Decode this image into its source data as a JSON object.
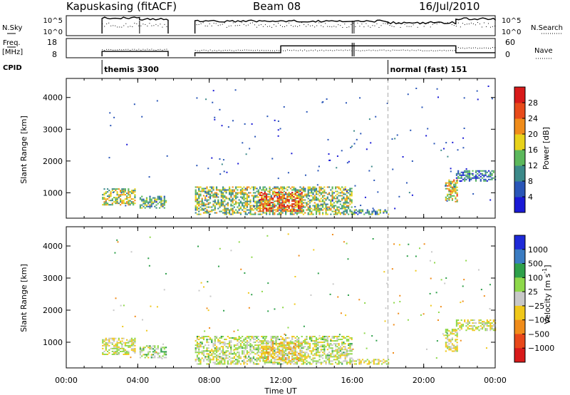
{
  "header": {
    "station": "Kapuskasing (fitACF)",
    "beam": "Beam 08",
    "date": "16/Jul/2010"
  },
  "strips": {
    "nsky_label": "N.Sky",
    "nsky_ticks": [
      "10^5",
      "10^0"
    ],
    "nsearch_label": "N.Search",
    "freq_label_1": "Freq.",
    "freq_label_2": "[MHz]",
    "freq_ticks": [
      "18",
      "8"
    ],
    "nave_ticks": [
      "60",
      "0"
    ],
    "nave_label": "Nave",
    "cpid_label": "CPID",
    "cpid_entries": [
      {
        "label": "themis 3300",
        "start_hour": 2.0
      },
      {
        "label": "normal (fast) 151",
        "start_hour": 18.0
      }
    ]
  },
  "axes": {
    "ylabel": "Slant Range [km]",
    "xlabel": "Time UT",
    "y_ticks": [
      "1000",
      "2000",
      "3000",
      "4000"
    ],
    "x_ticks": [
      "00:00",
      "04:00",
      "08:00",
      "12:00",
      "16:00",
      "20:00",
      "00:00"
    ]
  },
  "colorbars": {
    "power_label": "Power [dB]",
    "power_ticks": [
      "4",
      "8",
      "12",
      "16",
      "20",
      "24",
      "28"
    ],
    "velocity_label": "Velocity [m s",
    "velocity_sup": "-1",
    "velocity_label_end": "]",
    "velocity_ticks": [
      "1000",
      "500",
      "100",
      "25",
      "−25",
      "−100",
      "−500",
      "−1000"
    ]
  },
  "chart_data": {
    "type": "heatmap",
    "x_range_hours": [
      0,
      24
    ],
    "y_range_km": [
      200,
      4600
    ],
    "x_tick_hours": [
      0,
      4,
      8,
      12,
      16,
      20,
      24
    ],
    "y_tick_km": [
      1000,
      2000,
      3000,
      4000
    ],
    "power_scale_db": [
      0,
      30
    ],
    "velocity_scale_ms": [
      -1000,
      1000
    ],
    "power_colors": [
      "#1a1ad6",
      "#2a56b8",
      "#3c8a8a",
      "#5cb85c",
      "#e8d21a",
      "#f08c1a",
      "#e84a1a",
      "#d81a1a"
    ],
    "velocity_colors": [
      "#1e2ad8",
      "#3a7cc2",
      "#2ea04a",
      "#8ed84a",
      "#c8c8c8",
      "#f0c81a",
      "#f08c1a",
      "#e8481a",
      "#d81a1a"
    ],
    "data_gaps_hours": [
      [
        0,
        2.0
      ],
      [
        5.7,
        7.2
      ]
    ],
    "echo_regions": [
      {
        "t_start": 2.0,
        "t_end": 3.8,
        "range_start_km": 600,
        "range_end_km": 1100,
        "power_db": 15,
        "velocity_ms": 0
      },
      {
        "t_start": 4.1,
        "t_end": 5.6,
        "range_start_km": 500,
        "range_end_km": 900,
        "power_db": 12,
        "velocity_ms": 50
      },
      {
        "t_start": 7.2,
        "t_end": 16.0,
        "range_start_km": 300,
        "range_end_km": 1200,
        "power_db": 14,
        "velocity_ms": 20
      },
      {
        "t_start": 10.8,
        "t_end": 13.2,
        "range_start_km": 400,
        "range_end_km": 1000,
        "power_db": 24,
        "velocity_ms": -50
      },
      {
        "t_start": 16.0,
        "t_end": 18.0,
        "range_start_km": 300,
        "range_end_km": 450,
        "power_db": 10,
        "velocity_ms": 0
      },
      {
        "t_start": 21.2,
        "t_end": 21.9,
        "range_start_km": 700,
        "range_end_km": 1400,
        "power_db": 18,
        "velocity_ms": 0
      },
      {
        "t_start": 21.8,
        "t_end": 24.0,
        "range_start_km": 1350,
        "range_end_km": 1700,
        "power_db": 8,
        "velocity_ms": 0
      }
    ]
  }
}
